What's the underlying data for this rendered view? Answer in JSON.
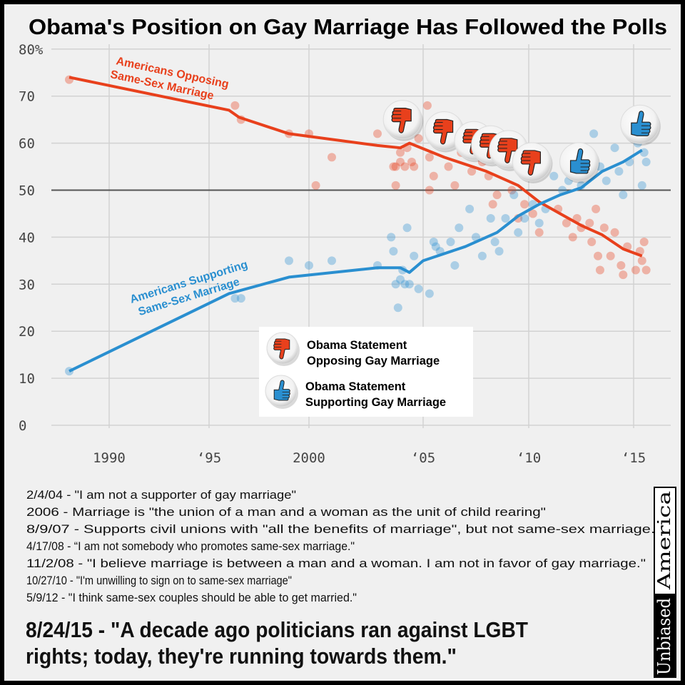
{
  "title": "Obama's Position on Gay Marriage Has Followed the Polls",
  "chart_data": {
    "type": "scatter",
    "title": "Obama's Position on Gay Marriage Has Followed the Polls",
    "xlabel": "",
    "ylabel": "",
    "ylim": [
      0,
      80
    ],
    "xlim": [
      1987,
      2016.5
    ],
    "grid": true,
    "reference_line": 50,
    "y_ticks": [
      {
        "v": 80,
        "label": "80%"
      },
      {
        "v": 70,
        "label": "70"
      },
      {
        "v": 60,
        "label": "60"
      },
      {
        "v": 50,
        "label": "50"
      },
      {
        "v": 40,
        "label": "40"
      },
      {
        "v": 30,
        "label": "30"
      },
      {
        "v": 20,
        "label": "20"
      },
      {
        "v": 10,
        "label": "10"
      },
      {
        "v": 0,
        "label": "0"
      }
    ],
    "x_ticks": [
      {
        "v": 1990,
        "label": "1990"
      },
      {
        "v": 1995,
        "label": "‘95"
      },
      {
        "v": 2000,
        "label": "2000"
      },
      {
        "v": 2005,
        "label": "‘05"
      },
      {
        "v": 2010,
        "label": "‘10"
      },
      {
        "v": 2015,
        "label": "‘15"
      }
    ],
    "series": [
      {
        "name": "Americans Opposing Same-Sex Marriage",
        "color": "#e8401c",
        "label_lines": [
          "Americans Opposing",
          "Same-Sex Marriage"
        ],
        "trend": [
          [
            1988,
            74
          ],
          [
            1996,
            67
          ],
          [
            1996.5,
            65.5
          ],
          [
            1999,
            62
          ],
          [
            2003,
            59.5
          ],
          [
            2004,
            59
          ],
          [
            2004.4,
            60
          ],
          [
            2006,
            57
          ],
          [
            2008,
            54
          ],
          [
            2009.5,
            51
          ],
          [
            2010.5,
            47.5
          ],
          [
            2011.5,
            45
          ],
          [
            2012.5,
            42.5
          ],
          [
            2013.5,
            40.5
          ],
          [
            2014.5,
            37.5
          ],
          [
            2015.4,
            36
          ]
        ],
        "points": [
          [
            1988,
            73.5
          ],
          [
            1996.3,
            68
          ],
          [
            1996.6,
            65
          ],
          [
            1999,
            62
          ],
          [
            2000,
            62
          ],
          [
            2000.3,
            51
          ],
          [
            2001,
            57
          ],
          [
            2003,
            62
          ],
          [
            2003.7,
            55
          ],
          [
            2003.8,
            55
          ],
          [
            2003.8,
            51
          ],
          [
            2004,
            58
          ],
          [
            2004,
            56
          ],
          [
            2004.2,
            55
          ],
          [
            2004.3,
            59
          ],
          [
            2004.5,
            56
          ],
          [
            2004.6,
            55
          ],
          [
            2004.8,
            61
          ],
          [
            2005.2,
            68
          ],
          [
            2005.3,
            57
          ],
          [
            2005.5,
            53
          ],
          [
            2005.3,
            50
          ],
          [
            2006.2,
            55
          ],
          [
            2006.5,
            51
          ],
          [
            2006.8,
            58
          ],
          [
            2007.3,
            54
          ],
          [
            2007.8,
            56
          ],
          [
            2008.1,
            53
          ],
          [
            2008.5,
            49
          ],
          [
            2008.3,
            47
          ],
          [
            2009.2,
            50
          ],
          [
            2009.5,
            44
          ],
          [
            2009.8,
            47
          ],
          [
            2010.2,
            45
          ],
          [
            2010.5,
            41
          ],
          [
            2011.4,
            46
          ],
          [
            2011.8,
            43
          ],
          [
            2012.1,
            40
          ],
          [
            2012.3,
            44
          ],
          [
            2012.5,
            42
          ],
          [
            2012.9,
            43
          ],
          [
            2013,
            39
          ],
          [
            2013.2,
            46
          ],
          [
            2013.3,
            36
          ],
          [
            2013.4,
            33
          ],
          [
            2013.6,
            42
          ],
          [
            2013.9,
            36
          ],
          [
            2014.1,
            41
          ],
          [
            2014.4,
            34
          ],
          [
            2014.5,
            32
          ],
          [
            2014.7,
            38
          ],
          [
            2015.1,
            33
          ],
          [
            2015.3,
            37
          ],
          [
            2015.4,
            35
          ],
          [
            2015.5,
            39
          ],
          [
            2015.6,
            33
          ]
        ]
      },
      {
        "name": "Americans Supporting Same-Sex Marriage",
        "color": "#2a8fd0",
        "label_lines": [
          "Americans Supporting",
          "Same-Sex Marriage"
        ],
        "trend": [
          [
            1988,
            11.5
          ],
          [
            1996,
            28
          ],
          [
            1999,
            31.5
          ],
          [
            2003,
            33.5
          ],
          [
            2004,
            33.5
          ],
          [
            2004.4,
            32.5
          ],
          [
            2005,
            35
          ],
          [
            2007,
            38
          ],
          [
            2008.5,
            41
          ],
          [
            2009.5,
            44.5
          ],
          [
            2010.5,
            47
          ],
          [
            2011.5,
            49
          ],
          [
            2012.5,
            50.5
          ],
          [
            2013.5,
            54
          ],
          [
            2014.5,
            56
          ],
          [
            2015.4,
            58.5
          ]
        ],
        "points": [
          [
            1988,
            11.5
          ],
          [
            1996.3,
            27
          ],
          [
            1996.6,
            27
          ],
          [
            1999,
            35
          ],
          [
            2000,
            34
          ],
          [
            2001,
            35
          ],
          [
            2003,
            34
          ],
          [
            2003.6,
            40
          ],
          [
            2003.7,
            37
          ],
          [
            2003.8,
            30
          ],
          [
            2003.9,
            25
          ],
          [
            2004,
            31
          ],
          [
            2004.1,
            33
          ],
          [
            2004.2,
            30
          ],
          [
            2004.3,
            42
          ],
          [
            2004.4,
            30
          ],
          [
            2004.6,
            36
          ],
          [
            2004.8,
            29
          ],
          [
            2005.3,
            28
          ],
          [
            2005.5,
            39
          ],
          [
            2005.6,
            38
          ],
          [
            2005.8,
            37
          ],
          [
            2006.3,
            39
          ],
          [
            2006.5,
            34
          ],
          [
            2006.7,
            42
          ],
          [
            2007.2,
            46
          ],
          [
            2007.5,
            40
          ],
          [
            2007.8,
            36
          ],
          [
            2008.2,
            44
          ],
          [
            2008.4,
            39
          ],
          [
            2008.6,
            37
          ],
          [
            2008.9,
            44
          ],
          [
            2009.3,
            49
          ],
          [
            2009.5,
            41
          ],
          [
            2009.8,
            44
          ],
          [
            2010.2,
            47
          ],
          [
            2010.5,
            43
          ],
          [
            2010.8,
            46
          ],
          [
            2011.2,
            53
          ],
          [
            2011.6,
            50
          ],
          [
            2011.9,
            52
          ],
          [
            2012.2,
            53
          ],
          [
            2012.5,
            51
          ],
          [
            2012.8,
            55
          ],
          [
            2013.1,
            62
          ],
          [
            2013.4,
            55
          ],
          [
            2013.7,
            52
          ],
          [
            2014.1,
            59
          ],
          [
            2014.3,
            54
          ],
          [
            2014.5,
            49
          ],
          [
            2014.8,
            56
          ],
          [
            2015.2,
            60
          ],
          [
            2015.4,
            51
          ],
          [
            2015.6,
            56
          ],
          [
            2015.5,
            58
          ]
        ]
      }
    ],
    "statements": [
      {
        "date": "2/4/04",
        "year": 2004.1,
        "y": 65,
        "stance": "oppose"
      },
      {
        "date": "2006",
        "year": 2006.0,
        "y": 62.6,
        "stance": "oppose"
      },
      {
        "date": "8/9/07",
        "year": 2007.4,
        "y": 60.5,
        "stance": "oppose"
      },
      {
        "date": "4/17/08",
        "year": 2008.2,
        "y": 59.6,
        "stance": "oppose"
      },
      {
        "date": "11/2/08",
        "year": 2009.05,
        "y": 58.6,
        "stance": "oppose"
      },
      {
        "date": "10/27/10",
        "year": 2010.15,
        "y": 56,
        "stance": "oppose"
      },
      {
        "date": "5/9/12",
        "year": 2012.4,
        "y": 56,
        "stance": "support"
      },
      {
        "date": "8/24/15",
        "year": 2015.3,
        "y": 64,
        "stance": "support"
      }
    ],
    "legend": {
      "placement": "center",
      "oppose": [
        "Obama Statement",
        "Opposing Gay Marriage"
      ],
      "support": [
        "Obama Statement",
        "Supporting Gay Marriage"
      ]
    }
  },
  "statements_text": [
    "2/4/04 - \"I am not a supporter of gay marriage\"",
    "2006 - Marriage is \"the union of a man and a woman as the unit of child rearing\"",
    "8/9/07 - Supports civil unions with \"all the benefits of marriage\", but not same-sex marriage.",
    "4/17/08 - “I am not somebody who promotes same-sex marriage.\"",
    "11/2/08 - \"I believe marriage is between a man and a woman. I am not in favor of gay marriage.\"",
    "10/27/10 - \"I'm unwilling to sign on to same-sex marriage\"",
    "5/9/12 - \"I think same-sex couples should be able to get married.\""
  ],
  "quote_lines": [
    "8/24/15 - \"A decade ago politicians ran against LGBT",
    "rights; today, they're running towards them.\""
  ],
  "watermark": {
    "part1": "Unbiased",
    "part2": "America"
  }
}
